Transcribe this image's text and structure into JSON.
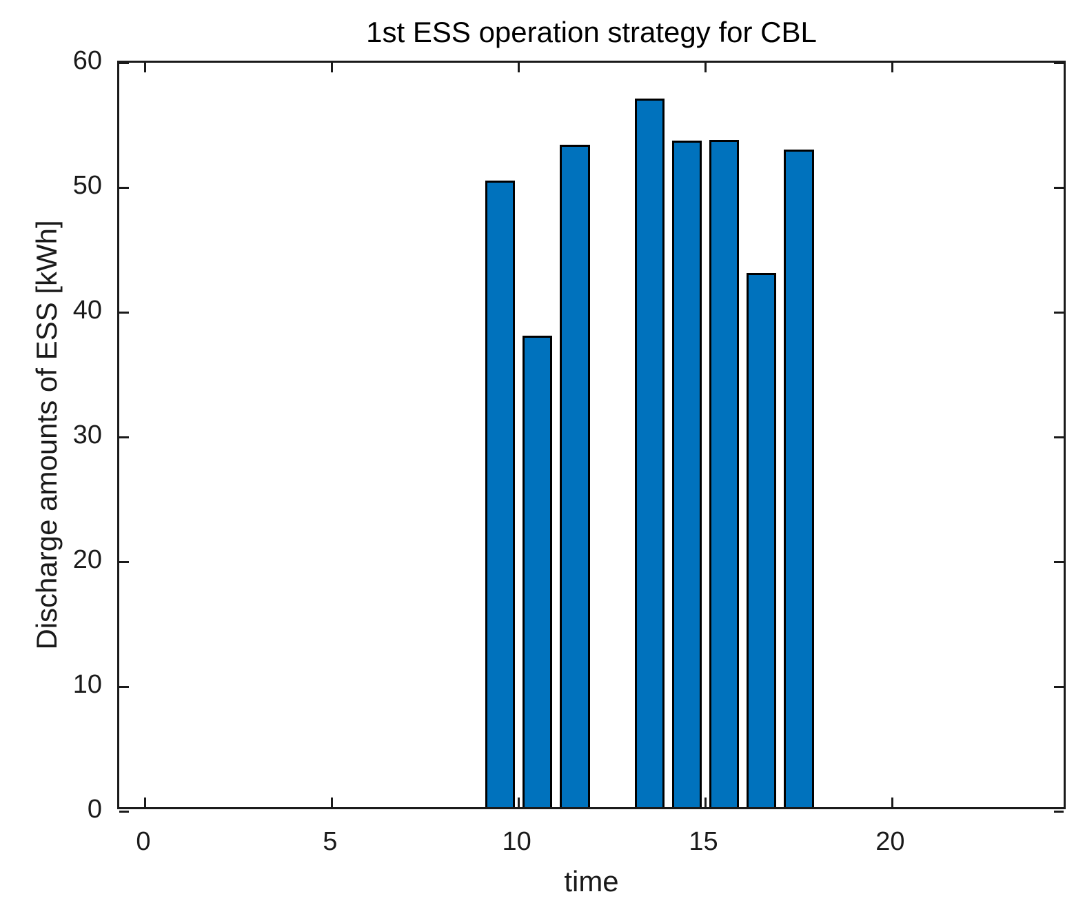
{
  "colors": {
    "bar_fill": "#0072BD",
    "bar_edge": "#000000",
    "axis": "#1a1a1a",
    "background": "#ffffff"
  },
  "chart_data": {
    "type": "bar",
    "title": "1st ESS operation strategy for CBL",
    "xlabel": "time",
    "ylabel": "Discharge amounts of ESS [kWh]",
    "x": [
      9.5,
      10.5,
      11.5,
      13.5,
      14.5,
      15.5,
      16.5,
      17.5
    ],
    "values": [
      50.2,
      37.8,
      53.1,
      56.8,
      53.4,
      53.5,
      42.8,
      52.7
    ],
    "bar_width": 0.8,
    "xlim": [
      -0.7,
      24.7
    ],
    "ylim": [
      0,
      60
    ],
    "xticks": [
      0,
      5,
      10,
      15,
      20
    ],
    "yticks": [
      0,
      10,
      20,
      30,
      40,
      50,
      60
    ],
    "grid": false,
    "legend_position": "none"
  }
}
